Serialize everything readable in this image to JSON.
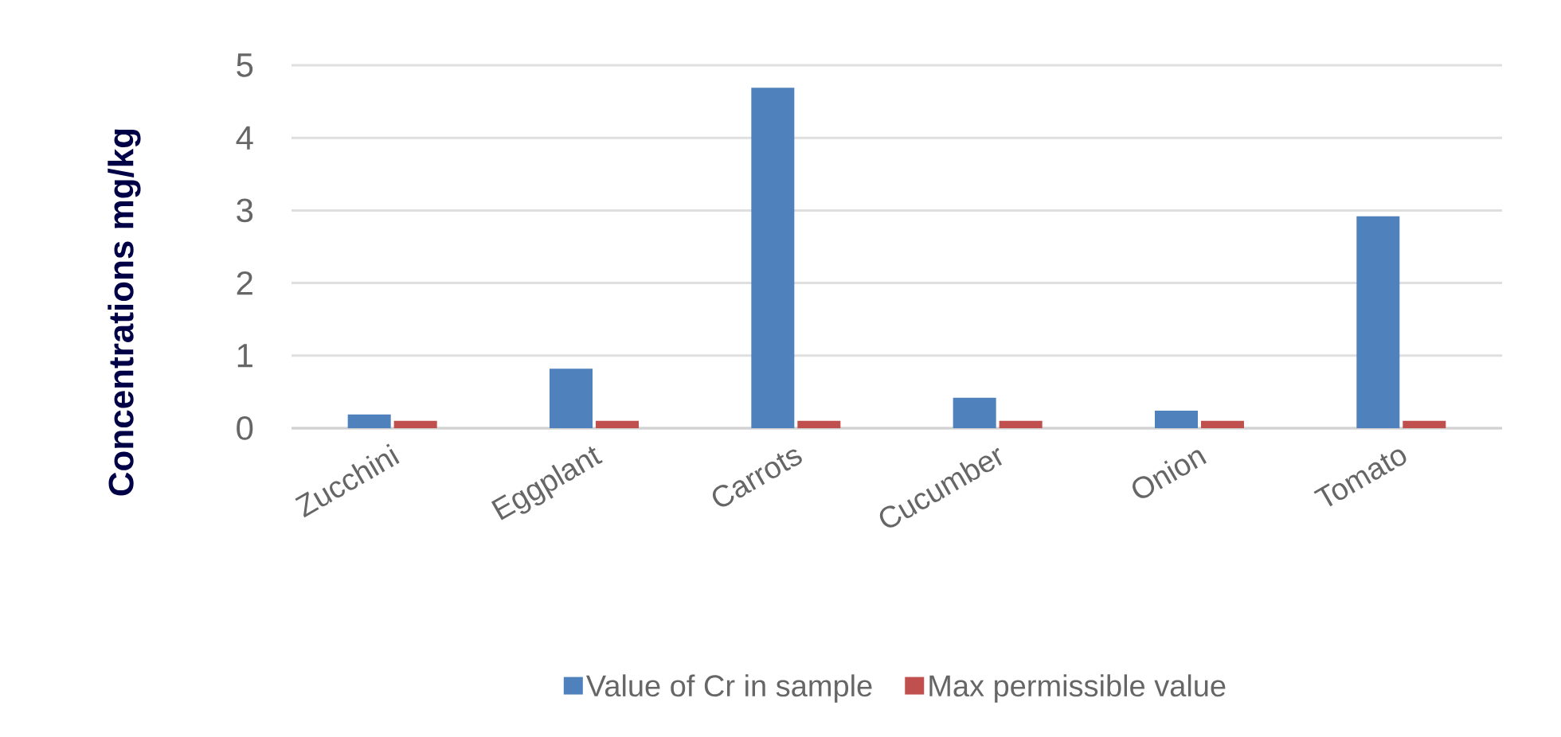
{
  "chart_data": {
    "type": "bar",
    "ylabel": "Concentrations  mg/kg",
    "categories": [
      "Zucchini",
      "Eggplant",
      "Carrots",
      "Cucumber",
      "Onion",
      "Tomato"
    ],
    "series": [
      {
        "name": "Value of Cr in sample",
        "color": "#4f81bd",
        "values": [
          0.19,
          0.82,
          4.69,
          0.42,
          0.24,
          2.92
        ]
      },
      {
        "name": "Max permissible value",
        "color": "#c0504d",
        "values": [
          0.1,
          0.1,
          0.1,
          0.1,
          0.1,
          0.1
        ]
      }
    ],
    "ylim": [
      0,
      5
    ],
    "yticks": [
      0,
      1,
      2,
      3,
      4,
      5
    ],
    "grid": "y",
    "legend": "bottom"
  }
}
